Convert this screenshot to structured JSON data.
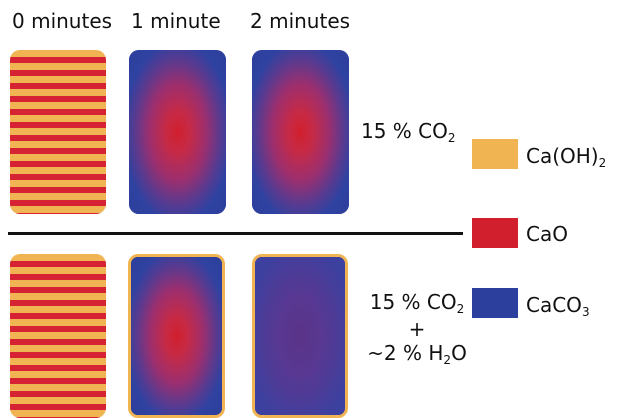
{
  "time_labels": {
    "t0": "0 minutes",
    "t1": "1 minute",
    "t2": "2 minutes"
  },
  "conditions": {
    "top": {
      "prefix": "15 % CO",
      "sub": "2"
    },
    "bottom": {
      "line1_prefix": "15 % CO",
      "line1_sub": "2",
      "line2": "+",
      "line3_prefix": "~2 % H",
      "line3_sub": "2",
      "line3_suffix": "O"
    }
  },
  "legend": [
    {
      "name_prefix": "Ca(OH)",
      "name_sub": "2",
      "color": "#f0b453"
    },
    {
      "name_prefix": "CaO",
      "name_sub": "",
      "color": "#d11f2d"
    },
    {
      "name_prefix": "CaCO",
      "name_sub": "3",
      "color": "#2c3f9c"
    }
  ],
  "colors": {
    "calcium_hydroxide": "#f0b453",
    "calcium_oxide": "#d11f2d",
    "calcium_carbonate": "#2c3f9c"
  }
}
